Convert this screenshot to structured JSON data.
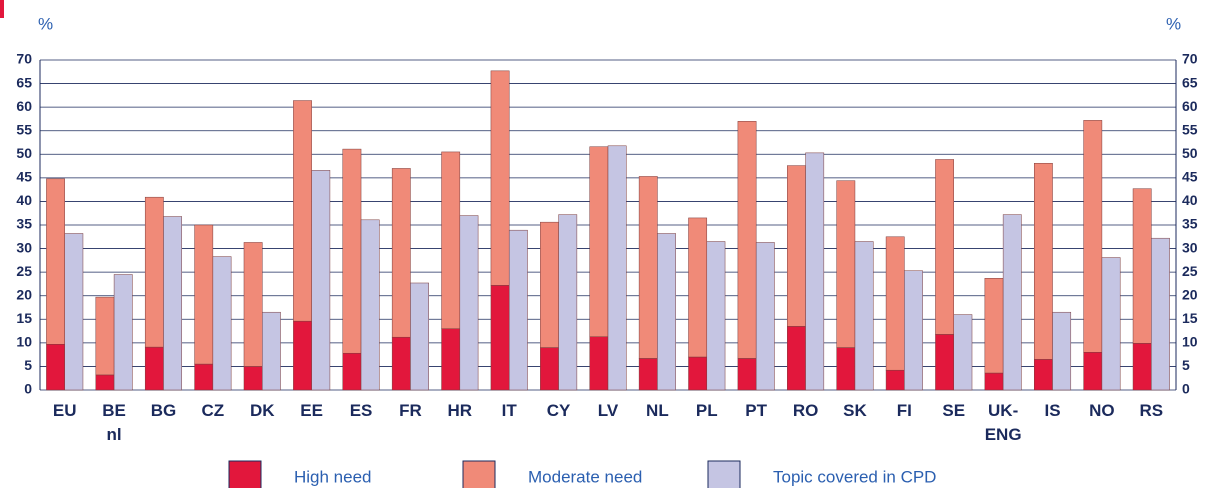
{
  "chart_data": {
    "type": "bar",
    "y_label": "%",
    "y2_label": "%",
    "categories": [
      "EU",
      "BE\nnl",
      "BG",
      "CZ",
      "DK",
      "EE",
      "ES",
      "FR",
      "HR",
      "IT",
      "CY",
      "LV",
      "NL",
      "PL",
      "PT",
      "RO",
      "SK",
      "FI",
      "SE",
      "UK-\nENG",
      "IS",
      "NO",
      "RS"
    ],
    "series": [
      {
        "name": "High need",
        "color": "#e2173c",
        "stack": "need",
        "values": [
          9.7,
          3.2,
          9.1,
          5.5,
          5.0,
          14.6,
          7.8,
          11.2,
          13.0,
          22.2,
          9.0,
          11.3,
          6.7,
          7.0,
          6.7,
          13.5,
          9.0,
          4.2,
          11.8,
          3.6,
          6.5,
          8.0,
          9.9
        ]
      },
      {
        "name": "Moderate need",
        "color": "#f08a78",
        "stack": "need",
        "values": [
          35.1,
          16.5,
          31.8,
          29.5,
          26.3,
          46.8,
          43.3,
          35.8,
          37.5,
          45.5,
          26.6,
          40.3,
          38.6,
          29.5,
          50.3,
          34.1,
          35.4,
          28.3,
          37.1,
          20.1,
          41.6,
          49.2,
          32.8
        ]
      },
      {
        "name": "Topic covered in CPD",
        "color": "#c5c5e3",
        "stack": "cpd",
        "values": [
          33.2,
          24.5,
          36.8,
          28.3,
          16.5,
          46.6,
          36.1,
          22.7,
          37.0,
          33.9,
          37.2,
          51.8,
          33.2,
          31.5,
          31.3,
          50.3,
          31.5,
          25.3,
          16.0,
          37.2,
          16.5,
          28.1,
          32.2
        ]
      }
    ],
    "ylim": [
      0,
      70
    ],
    "yticks": [
      0,
      5,
      10,
      15,
      20,
      25,
      30,
      35,
      40,
      45,
      50,
      55,
      60,
      65,
      70
    ],
    "y2lim": [
      0,
      70
    ],
    "y2ticks": [
      0,
      5,
      10,
      15,
      20,
      25,
      30,
      35,
      40,
      45,
      50,
      55,
      60,
      65,
      70
    ],
    "grid": true
  }
}
